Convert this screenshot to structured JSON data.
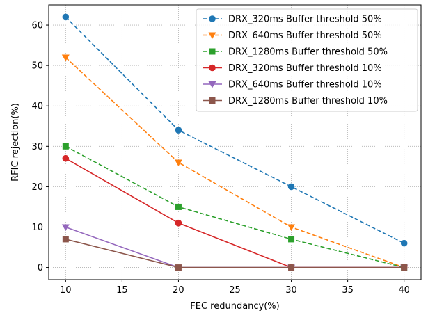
{
  "chart_data": {
    "type": "line",
    "title": "",
    "xlabel": "FEC redundancy(%)",
    "ylabel": "RFIC rejection(%)",
    "xlim": [
      8.5,
      41.5
    ],
    "ylim": [
      -3,
      65
    ],
    "xticks": [
      10,
      15,
      20,
      25,
      30,
      35,
      40
    ],
    "yticks": [
      0,
      10,
      20,
      30,
      40,
      50,
      60
    ],
    "grid": true,
    "grid_style": "dotted",
    "legend_position": "top-right",
    "x": [
      10,
      20,
      30,
      40
    ],
    "series": [
      {
        "name": "DRX_320ms Buffer threshold 50%",
        "values": [
          62,
          34,
          20,
          6
        ],
        "color": "#1f77b4",
        "linestyle": "dashed",
        "marker": "circle"
      },
      {
        "name": "DRX_640ms Buffer threshold 50%",
        "values": [
          52,
          26,
          10,
          0
        ],
        "color": "#ff7f0e",
        "linestyle": "dashed",
        "marker": "triangle-down"
      },
      {
        "name": "DRX_1280ms Buffer threshold 50%",
        "values": [
          30,
          15,
          7,
          0
        ],
        "color": "#2ca02c",
        "linestyle": "dashed",
        "marker": "square"
      },
      {
        "name": "DRX_320ms Buffer threshold 10%",
        "values": [
          27,
          11,
          0,
          0
        ],
        "color": "#d62728",
        "linestyle": "solid",
        "marker": "circle"
      },
      {
        "name": "DRX_640ms Buffer threshold 10%",
        "values": [
          10,
          0,
          0,
          0
        ],
        "color": "#9467bd",
        "linestyle": "solid",
        "marker": "triangle-down"
      },
      {
        "name": "DRX_1280ms Buffer threshold 10%",
        "values": [
          7,
          0,
          0,
          0
        ],
        "color": "#8c564b",
        "linestyle": "solid",
        "marker": "square"
      }
    ]
  }
}
